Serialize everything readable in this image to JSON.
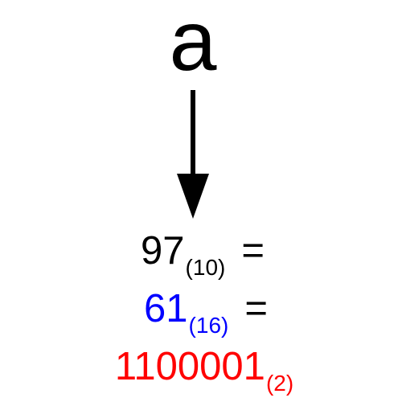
{
  "character": "a",
  "colors": {
    "character": "#000000",
    "decimal": "#000000",
    "hexadecimal": "#0000ff",
    "binary": "#ff0000",
    "equals": "#000000",
    "arrow": "#000000"
  },
  "conversions": [
    {
      "value": "97",
      "base": "(10)",
      "equals": "="
    },
    {
      "value": "61",
      "base": "(16)",
      "equals": "="
    },
    {
      "value": "1100001",
      "base": "(2)",
      "equals": ""
    }
  ]
}
